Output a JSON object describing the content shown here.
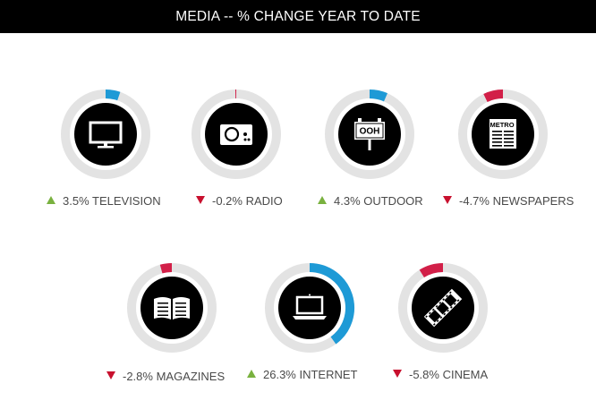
{
  "title": "MEDIA -- % CHANGE YEAR TO DATE",
  "colors": {
    "up": "#79b13f",
    "down": "#c8102e",
    "arc_up": "#1e9ad6",
    "arc_down": "#d21f48",
    "track": "#e3e3e3",
    "disc": "#000000",
    "text": "#4a4a4a"
  },
  "chart_data": {
    "type": "donut-indicators",
    "title": "MEDIA -- % CHANGE YEAR TO DATE",
    "unit": "%",
    "items": [
      {
        "label": "3.5% TELEVISION",
        "name": "TELEVISION",
        "value": 3.5,
        "direction": "up",
        "icon": "television-icon"
      },
      {
        "label": "-0.2% RADIO",
        "name": "RADIO",
        "value": -0.2,
        "direction": "down",
        "icon": "radio-icon"
      },
      {
        "label": "4.3% OUTDOOR",
        "name": "OUTDOOR",
        "value": 4.3,
        "direction": "up",
        "icon": "billboard-icon",
        "icon_text": "OOH"
      },
      {
        "label": "-4.7% NEWSPAPERS",
        "name": "NEWSPAPERS",
        "value": -4.7,
        "direction": "down",
        "icon": "newspaper-icon",
        "icon_text": "METRO"
      },
      {
        "label": "-2.8% MAGAZINES",
        "name": "MAGAZINES",
        "value": -2.8,
        "direction": "down",
        "icon": "open-book-icon"
      },
      {
        "label": "26.3% INTERNET",
        "name": "INTERNET",
        "value": 26.3,
        "direction": "up",
        "icon": "laptop-icon"
      },
      {
        "label": "-5.8% CINEMA",
        "name": "CINEMA",
        "value": -5.8,
        "direction": "down",
        "icon": "film-strip-icon"
      }
    ]
  }
}
